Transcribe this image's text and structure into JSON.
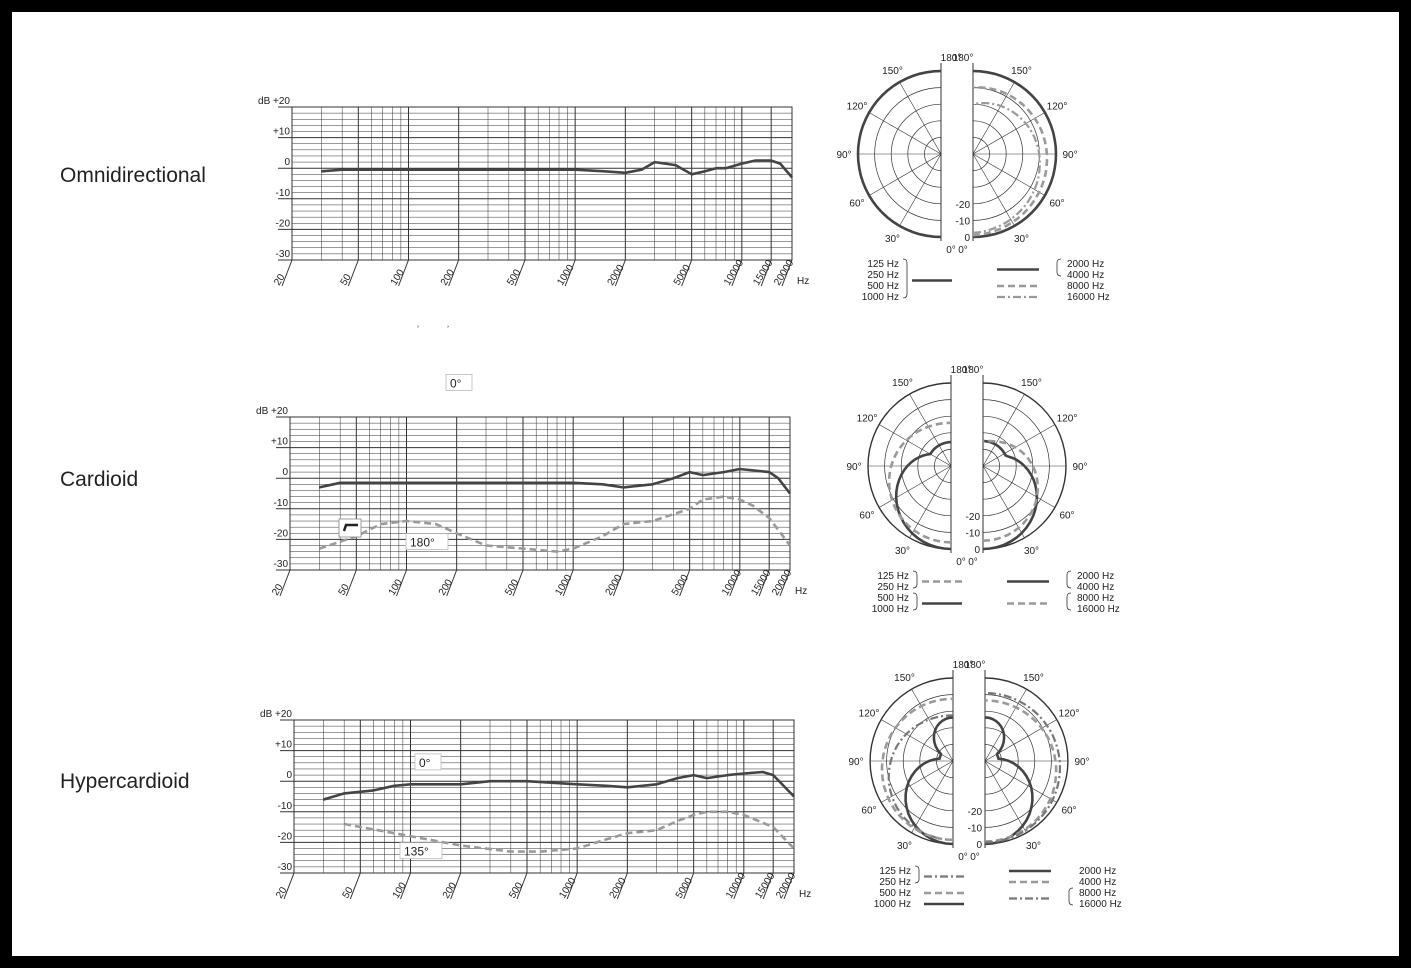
{
  "colors": {
    "dark": "#444444",
    "light": "#9a9a9a",
    "lighter": "#bdbdbd",
    "grid": "#333333"
  },
  "freq_ticks": [
    "20",
    "50",
    "100",
    "200",
    "500",
    "1000",
    "2000",
    "5000",
    "10000",
    "15000",
    "20000"
  ],
  "freq_unit": "Hz",
  "db_ticks": [
    "dB  +20",
    "+10",
    "0",
    "-10",
    "-20",
    "-30"
  ],
  "polar_angles": {
    "top": "180°",
    "l150": "150°",
    "l120": "120°",
    "l90": "90°",
    "l60": "60°",
    "l30": "30°",
    "bottom": "0°"
  },
  "polar_db": [
    "-20",
    "-10",
    "0"
  ],
  "stray_marks": [
    "ʾ",
    "ʾ"
  ],
  "panels": [
    {
      "label": "Omnidirectional",
      "chart_data": {
        "type": "line",
        "xscale": "log",
        "xlim": [
          20,
          20000
        ],
        "ylim": [
          -30,
          20
        ],
        "xlabel": "Hz",
        "ylabel": "dB",
        "series": [
          {
            "style": "solid-dark",
            "x": [
              30,
              40,
              100,
              500,
              1000,
              1500,
              2000,
              2500,
              3000,
              4000,
              5000,
              6000,
              7000,
              8000,
              10000,
              12000,
              15000,
              17000,
              20000
            ],
            "y": [
              -1,
              -0.5,
              -0.5,
              -0.5,
              -0.5,
              -1,
              -1.5,
              -0.5,
              2,
              1,
              -2,
              -1,
              0,
              0,
              1.5,
              2.5,
              2.5,
              1.5,
              -3
            ]
          }
        ],
        "annotations": []
      },
      "polar": {
        "legend_left": {
          "labels": [
            "125 Hz",
            "250 Hz",
            "500 Hz",
            "1000 Hz"
          ],
          "style": "solid-dark"
        },
        "legend_right": [
          {
            "labels": [
              "2000 Hz",
              "4000 Hz"
            ],
            "style": "solid-dark"
          },
          {
            "labels": [
              "8000 Hz"
            ],
            "style": "dashed-light"
          },
          {
            "labels": [
              "16000 Hz"
            ],
            "style": "dashdot-light"
          }
        ]
      }
    },
    {
      "label": "Cardioid",
      "chart_data": {
        "type": "line",
        "xscale": "log",
        "xlim": [
          20,
          20000
        ],
        "ylim": [
          -30,
          20
        ],
        "xlabel": "Hz",
        "ylabel": "dB",
        "series": [
          {
            "name": "0°",
            "style": "solid-dark",
            "x": [
              30,
              40,
              100,
              500,
              1000,
              1500,
              2000,
              3000,
              4000,
              5000,
              6000,
              8000,
              10000,
              15000,
              17000,
              20000
            ],
            "y": [
              -3,
              -1.5,
              -1.5,
              -1.5,
              -1.5,
              -2,
              -3,
              -2,
              0,
              2,
              1,
              2,
              3,
              2,
              0,
              -5
            ]
          },
          {
            "name": "180°",
            "style": "dashed-light",
            "x": [
              30,
              50,
              70,
              100,
              150,
              200,
              300,
              500,
              800,
              1000,
              1500,
              2000,
              3000,
              5000,
              6000,
              8000,
              10000,
              12000,
              15000,
              20000
            ],
            "y": [
              -23,
              -19,
              -15,
              -14,
              -15,
              -18,
              -22,
              -23,
              -24,
              -23,
              -19,
              -15,
              -14,
              -10,
              -7,
              -6,
              -7,
              -9,
              -13,
              -22
            ]
          }
        ],
        "annotations": [
          "0°",
          "180°"
        ]
      },
      "polar": {
        "legend_left": [
          {
            "labels": [
              "125 Hz",
              "250 Hz"
            ],
            "style": "dashed-light"
          },
          {
            "labels": [
              "500 Hz",
              "1000 Hz"
            ],
            "style": "solid-dark"
          }
        ],
        "legend_right": [
          {
            "labels": [
              "2000 Hz",
              "4000 Hz"
            ],
            "style": "solid-dark"
          },
          {
            "labels": [
              "8000 Hz",
              "16000 Hz"
            ],
            "style": "dashed-light"
          }
        ]
      }
    },
    {
      "label": "Hypercardioid",
      "chart_data": {
        "type": "line",
        "xscale": "log",
        "xlim": [
          20,
          20000
        ],
        "ylim": [
          -30,
          20
        ],
        "xlabel": "Hz",
        "ylabel": "dB",
        "series": [
          {
            "name": "0°",
            "style": "solid-dark",
            "x": [
              30,
              40,
              60,
              80,
              100,
              200,
              300,
              500,
              1000,
              1500,
              2000,
              3000,
              4000,
              5000,
              6000,
              8000,
              10000,
              13000,
              15000,
              20000
            ],
            "y": [
              -6,
              -4,
              -3,
              -1.5,
              -1,
              -1,
              0,
              0,
              -1,
              -1.5,
              -2,
              -1,
              1,
              2,
              1,
              2,
              2.5,
              3,
              2,
              -5
            ]
          },
          {
            "name": "135°",
            "style": "dashed-light",
            "x": [
              40,
              80,
              200,
              400,
              600,
              1000,
              1500,
              2000,
              3000,
              4000,
              5000,
              6000,
              8000,
              10000,
              15000,
              20000
            ],
            "y": [
              -14,
              -17,
              -21,
              -23,
              -23,
              -22,
              -19,
              -17,
              -16,
              -13,
              -11,
              -10,
              -10,
              -11,
              -15,
              -22
            ]
          }
        ],
        "annotations": [
          "0°",
          "135°"
        ]
      },
      "polar": {
        "legend_left": [
          {
            "labels": [
              "125 Hz",
              "250 Hz"
            ],
            "style": "dashdot-dark"
          },
          {
            "labels": [
              "500 Hz"
            ],
            "style": "dashed-light"
          },
          {
            "labels": [
              "1000 Hz"
            ],
            "style": "solid-dark"
          }
        ],
        "legend_right": [
          {
            "labels": [
              "2000 Hz"
            ],
            "style": "solid-dark"
          },
          {
            "labels": [
              "4000 Hz"
            ],
            "style": "dashed-light"
          },
          {
            "labels": [
              "8000 Hz",
              "16000 Hz"
            ],
            "style": "dashdot-dark"
          }
        ]
      }
    }
  ]
}
